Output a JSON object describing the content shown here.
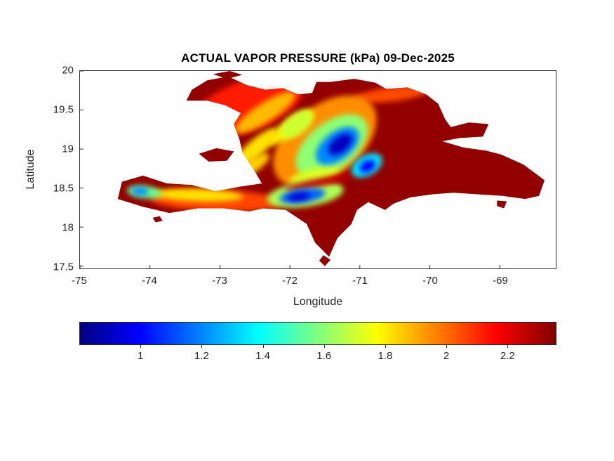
{
  "chart_data": {
    "type": "heatmap",
    "title": "ACTUAL VAPOR PRESSURE (kPa) 09-Dec-2025",
    "variable": "Actual vapor pressure",
    "units": "kPa",
    "date": "09-Dec-2025",
    "xlabel": "Longitude",
    "ylabel": "Latitude",
    "xlim": [
      -75,
      -68.2
    ],
    "ylim": [
      17.47,
      20
    ],
    "x_ticks": [
      -75,
      -74,
      -73,
      -72,
      -71,
      -70,
      -69
    ],
    "y_ticks": [
      20,
      19.5,
      19,
      18.5,
      18,
      17.5
    ],
    "grid": false,
    "colormap": "jet",
    "colorbar": {
      "orientation": "horizontal",
      "ticks": [
        1,
        1.2,
        1.4,
        1.6,
        1.8,
        2,
        2.2
      ],
      "range": [
        0.8,
        2.36
      ]
    },
    "background_value": 2.33,
    "islands": [
      {
        "name": "hispaniola-main",
        "points": [
          [
            -73.48,
            19.62
          ],
          [
            -73.4,
            19.76
          ],
          [
            -73.18,
            19.88
          ],
          [
            -72.88,
            19.93
          ],
          [
            -72.62,
            19.82
          ],
          [
            -72.35,
            19.76
          ],
          [
            -72.1,
            19.78
          ],
          [
            -71.88,
            19.7
          ],
          [
            -71.68,
            19.72
          ],
          [
            -71.62,
            19.86
          ],
          [
            -71.42,
            19.86
          ],
          [
            -71.08,
            19.9
          ],
          [
            -70.78,
            19.85
          ],
          [
            -70.62,
            19.77
          ],
          [
            -70.32,
            19.79
          ],
          [
            -70.05,
            19.7
          ],
          [
            -69.88,
            19.58
          ],
          [
            -69.78,
            19.38
          ],
          [
            -69.7,
            19.28
          ],
          [
            -69.44,
            19.34
          ],
          [
            -69.16,
            19.32
          ],
          [
            -69.24,
            19.16
          ],
          [
            -69.58,
            19.14
          ],
          [
            -69.82,
            19.1
          ],
          [
            -69.52,
            19.02
          ],
          [
            -69.2,
            18.98
          ],
          [
            -68.98,
            18.93
          ],
          [
            -68.66,
            18.8
          ],
          [
            -68.36,
            18.6
          ],
          [
            -68.44,
            18.4
          ],
          [
            -68.64,
            18.36
          ],
          [
            -68.96,
            18.4
          ],
          [
            -69.32,
            18.42
          ],
          [
            -69.66,
            18.44
          ],
          [
            -69.96,
            18.42
          ],
          [
            -70.28,
            18.38
          ],
          [
            -70.52,
            18.3
          ],
          [
            -70.64,
            18.22
          ],
          [
            -70.88,
            18.32
          ],
          [
            -71.04,
            18.22
          ],
          [
            -71.12,
            18.04
          ],
          [
            -71.32,
            17.86
          ],
          [
            -71.44,
            17.62
          ],
          [
            -71.64,
            17.8
          ],
          [
            -71.76,
            18.04
          ],
          [
            -72.06,
            18.22
          ],
          [
            -72.38,
            18.24
          ],
          [
            -72.58,
            18.2
          ],
          [
            -72.94,
            18.24
          ],
          [
            -73.32,
            18.24
          ],
          [
            -73.72,
            18.18
          ],
          [
            -74.1,
            18.26
          ],
          [
            -74.46,
            18.36
          ],
          [
            -74.4,
            18.58
          ],
          [
            -74.1,
            18.66
          ],
          [
            -73.76,
            18.56
          ],
          [
            -73.4,
            18.54
          ],
          [
            -73.06,
            18.46
          ],
          [
            -72.7,
            18.52
          ],
          [
            -72.4,
            18.56
          ],
          [
            -72.52,
            18.74
          ],
          [
            -72.68,
            18.96
          ],
          [
            -72.72,
            19.12
          ],
          [
            -72.8,
            19.32
          ],
          [
            -72.7,
            19.46
          ],
          [
            -72.92,
            19.56
          ],
          [
            -73.18,
            19.62
          ]
        ]
      },
      {
        "name": "ile-de-la-gonave",
        "points": [
          [
            -73.3,
            18.94
          ],
          [
            -73.05,
            19.01
          ],
          [
            -72.8,
            18.97
          ],
          [
            -72.9,
            18.85
          ],
          [
            -73.16,
            18.84
          ]
        ]
      },
      {
        "name": "ile-de-la-tortue",
        "points": [
          [
            -73.1,
            19.96
          ],
          [
            -72.86,
            20.0
          ],
          [
            -72.68,
            19.95
          ],
          [
            -72.9,
            19.9
          ]
        ]
      },
      {
        "name": "isla-catalina",
        "points": [
          [
            -69.04,
            18.34
          ],
          [
            -68.9,
            18.33
          ],
          [
            -68.94,
            18.24
          ],
          [
            -69.04,
            18.27
          ]
        ]
      },
      {
        "name": "isla-beata",
        "points": [
          [
            -71.52,
            17.64
          ],
          [
            -71.42,
            17.58
          ],
          [
            -71.5,
            17.5
          ],
          [
            -71.58,
            17.57
          ]
        ]
      },
      {
        "name": "ile-a-vache",
        "points": [
          [
            -73.96,
            18.12
          ],
          [
            -73.86,
            18.14
          ],
          [
            -73.82,
            18.08
          ],
          [
            -73.92,
            18.06
          ]
        ]
      }
    ],
    "anomalies": [
      {
        "lon": -72.62,
        "lat": 19.55,
        "rx": 0.85,
        "ry": 0.32,
        "rot": -20,
        "value": 2.12
      },
      {
        "lon": -73.05,
        "lat": 18.34,
        "rx": 0.95,
        "ry": 0.14,
        "rot": 2,
        "value": 2.06
      },
      {
        "lon": -70.55,
        "lat": 19.7,
        "rx": 0.55,
        "ry": 0.09,
        "rot": -7,
        "value": 2.05
      },
      {
        "lon": -71.5,
        "lat": 19.1,
        "rx": 0.85,
        "ry": 0.45,
        "rot": -38,
        "value": 1.95
      },
      {
        "lon": -72.35,
        "lat": 19.47,
        "rx": 0.5,
        "ry": 0.12,
        "rot": -33,
        "value": 1.88
      },
      {
        "lon": -72.0,
        "lat": 19.27,
        "rx": 0.4,
        "ry": 0.1,
        "rot": -35,
        "value": 1.8
      },
      {
        "lon": -72.5,
        "lat": 19.0,
        "rx": 0.42,
        "ry": 0.11,
        "rot": -42,
        "value": 1.82
      },
      {
        "lon": -72.55,
        "lat": 18.78,
        "rx": 0.3,
        "ry": 0.09,
        "rot": -33,
        "value": 1.85
      },
      {
        "lon": -71.4,
        "lat": 19.04,
        "rx": 0.6,
        "ry": 0.3,
        "rot": -38,
        "value": 1.6
      },
      {
        "lon": -71.9,
        "lat": 19.32,
        "rx": 0.28,
        "ry": 0.13,
        "rot": -38,
        "value": 1.7
      },
      {
        "lon": -71.65,
        "lat": 18.67,
        "rx": 0.36,
        "ry": 0.08,
        "rot": -14,
        "value": 1.72
      },
      {
        "lon": -71.78,
        "lat": 18.42,
        "rx": 0.55,
        "ry": 0.16,
        "rot": -8,
        "value": 1.65
      },
      {
        "lon": -73.32,
        "lat": 18.41,
        "rx": 0.65,
        "ry": 0.08,
        "rot": 2,
        "value": 1.82
      },
      {
        "lon": -74.08,
        "lat": 18.45,
        "rx": 0.25,
        "ry": 0.08,
        "rot": 6,
        "value": 1.55
      },
      {
        "lon": -71.58,
        "lat": 18.57,
        "rx": 0.5,
        "ry": 0.05,
        "rot": -12,
        "value": 2.25
      },
      {
        "lon": -71.32,
        "lat": 19.04,
        "rx": 0.36,
        "ry": 0.18,
        "rot": -38,
        "value": 1.2
      },
      {
        "lon": -70.9,
        "lat": 18.79,
        "rx": 0.24,
        "ry": 0.13,
        "rot": -30,
        "value": 1.35
      },
      {
        "lon": -71.82,
        "lat": 18.4,
        "rx": 0.33,
        "ry": 0.09,
        "rot": -8,
        "value": 1.15
      },
      {
        "lon": -74.14,
        "lat": 18.46,
        "rx": 0.12,
        "ry": 0.05,
        "rot": 6,
        "value": 1.2
      },
      {
        "lon": -71.28,
        "lat": 19.06,
        "rx": 0.2,
        "ry": 0.1,
        "rot": -38,
        "value": 0.9
      },
      {
        "lon": -70.89,
        "lat": 18.78,
        "rx": 0.12,
        "ry": 0.07,
        "rot": -30,
        "value": 1.0
      },
      {
        "lon": -71.87,
        "lat": 18.39,
        "rx": 0.16,
        "ry": 0.05,
        "rot": -8,
        "value": 0.92
      }
    ]
  }
}
